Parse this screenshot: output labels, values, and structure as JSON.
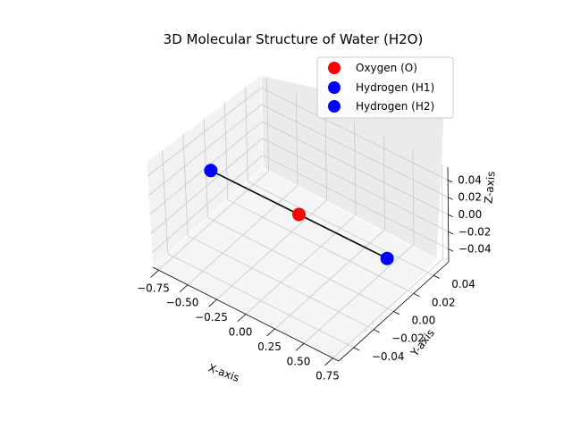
{
  "chart_data": {
    "type": "scatter",
    "projection": "3d",
    "title": "3D Molecular Structure of Water (H2O)",
    "xlabel": "X-axis",
    "ylabel": "Y-axis",
    "zlabel": "Z-axis",
    "xlim": [
      -0.8,
      0.8
    ],
    "ylim": [
      -0.055,
      0.055
    ],
    "zlim": [
      -0.055,
      0.055
    ],
    "x_ticks": [
      "−0.75",
      "−0.50",
      "−0.25",
      "0.00",
      "0.25",
      "0.50",
      "0.75"
    ],
    "y_ticks": [
      "−0.04",
      "−0.02",
      "0.00",
      "0.02",
      "0.04"
    ],
    "z_ticks": [
      "−0.04",
      "−0.02",
      "0.00",
      "0.02",
      "0.04"
    ],
    "grid": true,
    "legend_position": "top-right",
    "series": [
      {
        "name": "Oxygen (O)",
        "color": "#ff0000",
        "x": 0.0,
        "y": 0.0,
        "z": 0.0
      },
      {
        "name": "Hydrogen (H1)",
        "color": "#0000ff",
        "x": -0.757,
        "y": 0.0,
        "z": 0.0
      },
      {
        "name": "Hydrogen (H2)",
        "color": "#0000ff",
        "x": 0.757,
        "y": 0.0,
        "z": 0.0
      }
    ],
    "bonds": [
      {
        "from": "Hydrogen (H1)",
        "to": "Oxygen (O)",
        "color": "#000000"
      },
      {
        "from": "Oxygen (O)",
        "to": "Hydrogen (H2)",
        "color": "#000000"
      }
    ]
  }
}
